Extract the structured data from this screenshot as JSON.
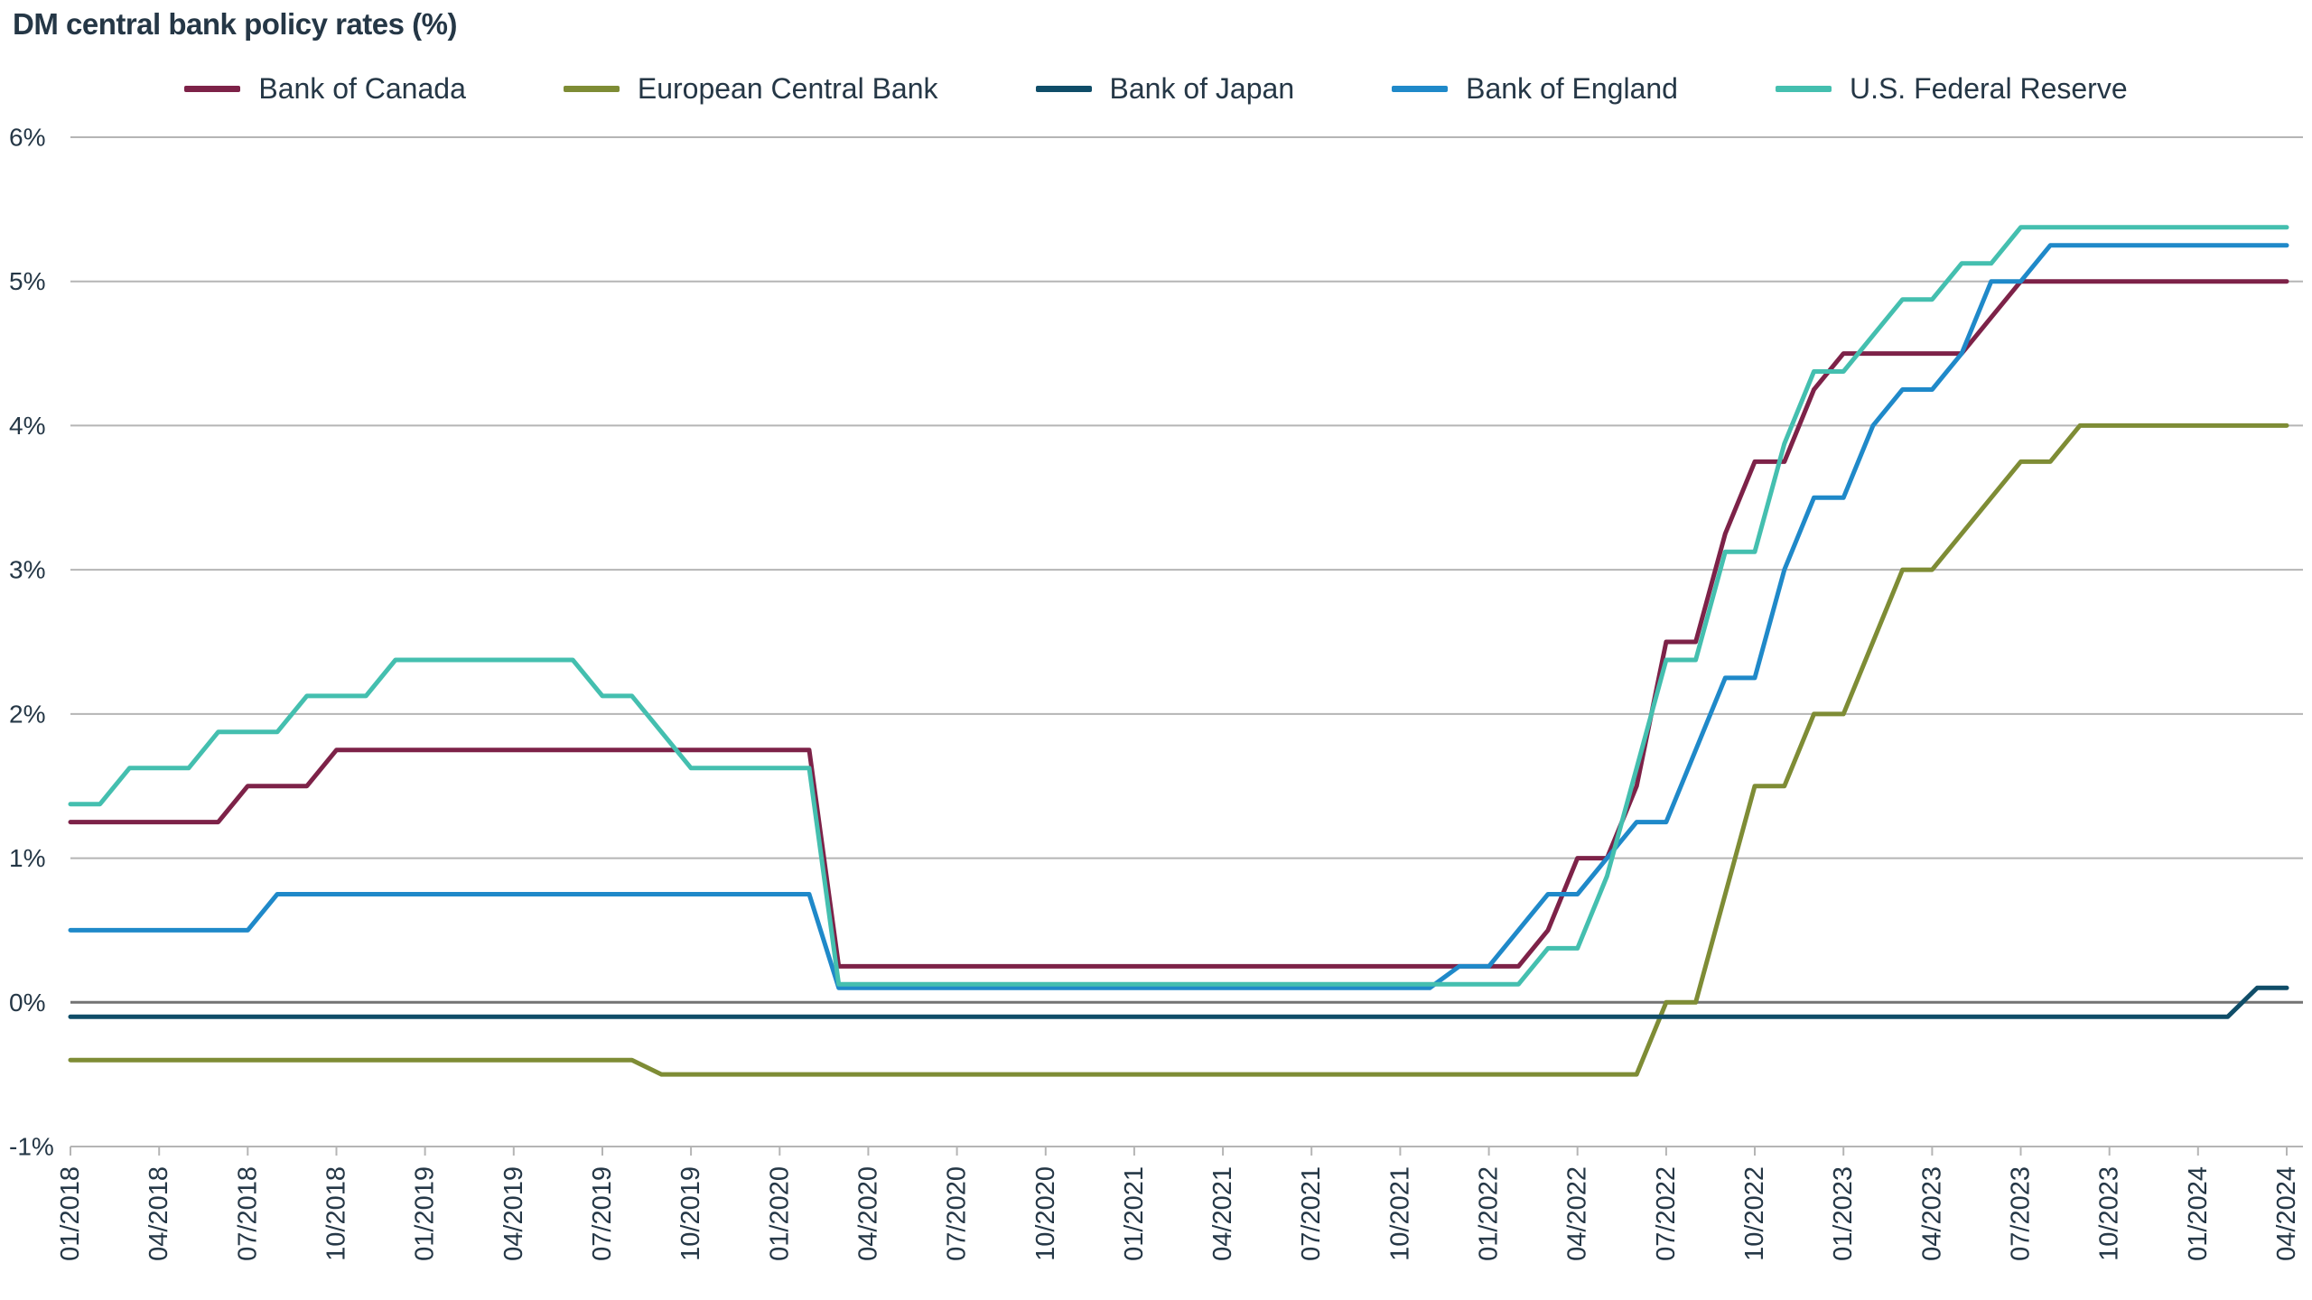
{
  "title": "DM central bank policy rates (%)",
  "colors": {
    "text": "#253746",
    "gridline": "#b5b5b5",
    "zero_line": "#737373",
    "background": "#ffffff"
  },
  "chart_data": {
    "type": "line",
    "title": "DM central bank policy rates (%)",
    "xlabel": "",
    "ylabel": "",
    "frequency": "monthly",
    "x_start_label": "01/2018",
    "x_end_label": "04/2024",
    "ylim": [
      -1,
      6
    ],
    "grid": "horizontal",
    "legend_position": "top",
    "y_tick_labels": [
      "6%",
      "5%",
      "4%",
      "3%",
      "2%",
      "1%",
      "0%",
      "-1%"
    ],
    "y_ticks": [
      6,
      5,
      4,
      3,
      2,
      1,
      0,
      -1
    ],
    "x_tick_labels": [
      "01/2018",
      "04/2018",
      "07/2018",
      "10/2018",
      "01/2019",
      "04/2019",
      "07/2019",
      "10/2019",
      "01/2020",
      "04/2020",
      "07/2020",
      "10/2020",
      "01/2021",
      "04/2021",
      "07/2021",
      "10/2021",
      "01/2022",
      "04/2022",
      "07/2022",
      "10/2022",
      "01/2023",
      "04/2023",
      "07/2023",
      "10/2023",
      "01/2024",
      "04/2024"
    ],
    "x_tick_every_n_points": 3,
    "series": [
      {
        "name": "Bank of Canada",
        "color": "#7d2248",
        "values": [
          1.25,
          1.25,
          1.25,
          1.25,
          1.25,
          1.25,
          1.5,
          1.5,
          1.5,
          1.75,
          1.75,
          1.75,
          1.75,
          1.75,
          1.75,
          1.75,
          1.75,
          1.75,
          1.75,
          1.75,
          1.75,
          1.75,
          1.75,
          1.75,
          1.75,
          1.75,
          0.25,
          0.25,
          0.25,
          0.25,
          0.25,
          0.25,
          0.25,
          0.25,
          0.25,
          0.25,
          0.25,
          0.25,
          0.25,
          0.25,
          0.25,
          0.25,
          0.25,
          0.25,
          0.25,
          0.25,
          0.25,
          0.25,
          0.25,
          0.25,
          0.5,
          1.0,
          1.0,
          1.5,
          2.5,
          2.5,
          3.25,
          3.75,
          3.75,
          4.25,
          4.5,
          4.5,
          4.5,
          4.5,
          4.5,
          4.75,
          5.0,
          5.0,
          5.0,
          5.0,
          5.0,
          5.0,
          5.0,
          5.0,
          5.0,
          5.0
        ]
      },
      {
        "name": "European Central Bank",
        "color": "#7e8c35",
        "values": [
          -0.4,
          -0.4,
          -0.4,
          -0.4,
          -0.4,
          -0.4,
          -0.4,
          -0.4,
          -0.4,
          -0.4,
          -0.4,
          -0.4,
          -0.4,
          -0.4,
          -0.4,
          -0.4,
          -0.4,
          -0.4,
          -0.4,
          -0.4,
          -0.5,
          -0.5,
          -0.5,
          -0.5,
          -0.5,
          -0.5,
          -0.5,
          -0.5,
          -0.5,
          -0.5,
          -0.5,
          -0.5,
          -0.5,
          -0.5,
          -0.5,
          -0.5,
          -0.5,
          -0.5,
          -0.5,
          -0.5,
          -0.5,
          -0.5,
          -0.5,
          -0.5,
          -0.5,
          -0.5,
          -0.5,
          -0.5,
          -0.5,
          -0.5,
          -0.5,
          -0.5,
          -0.5,
          -0.5,
          0.0,
          0.0,
          0.75,
          1.5,
          1.5,
          2.0,
          2.0,
          2.5,
          3.0,
          3.0,
          3.25,
          3.5,
          3.75,
          3.75,
          4.0,
          4.0,
          4.0,
          4.0,
          4.0,
          4.0,
          4.0,
          4.0
        ]
      },
      {
        "name": "Bank of Japan",
        "color": "#0f4d68",
        "values": [
          -0.1,
          -0.1,
          -0.1,
          -0.1,
          -0.1,
          -0.1,
          -0.1,
          -0.1,
          -0.1,
          -0.1,
          -0.1,
          -0.1,
          -0.1,
          -0.1,
          -0.1,
          -0.1,
          -0.1,
          -0.1,
          -0.1,
          -0.1,
          -0.1,
          -0.1,
          -0.1,
          -0.1,
          -0.1,
          -0.1,
          -0.1,
          -0.1,
          -0.1,
          -0.1,
          -0.1,
          -0.1,
          -0.1,
          -0.1,
          -0.1,
          -0.1,
          -0.1,
          -0.1,
          -0.1,
          -0.1,
          -0.1,
          -0.1,
          -0.1,
          -0.1,
          -0.1,
          -0.1,
          -0.1,
          -0.1,
          -0.1,
          -0.1,
          -0.1,
          -0.1,
          -0.1,
          -0.1,
          -0.1,
          -0.1,
          -0.1,
          -0.1,
          -0.1,
          -0.1,
          -0.1,
          -0.1,
          -0.1,
          -0.1,
          -0.1,
          -0.1,
          -0.1,
          -0.1,
          -0.1,
          -0.1,
          -0.1,
          -0.1,
          -0.1,
          -0.1,
          0.1,
          0.1
        ]
      },
      {
        "name": "Bank of England",
        "color": "#1f89c9",
        "values": [
          0.5,
          0.5,
          0.5,
          0.5,
          0.5,
          0.5,
          0.5,
          0.75,
          0.75,
          0.75,
          0.75,
          0.75,
          0.75,
          0.75,
          0.75,
          0.75,
          0.75,
          0.75,
          0.75,
          0.75,
          0.75,
          0.75,
          0.75,
          0.75,
          0.75,
          0.75,
          0.1,
          0.1,
          0.1,
          0.1,
          0.1,
          0.1,
          0.1,
          0.1,
          0.1,
          0.1,
          0.1,
          0.1,
          0.1,
          0.1,
          0.1,
          0.1,
          0.1,
          0.1,
          0.1,
          0.1,
          0.1,
          0.25,
          0.25,
          0.5,
          0.75,
          0.75,
          1.0,
          1.25,
          1.25,
          1.75,
          2.25,
          2.25,
          3.0,
          3.5,
          3.5,
          4.0,
          4.25,
          4.25,
          4.5,
          5.0,
          5.0,
          5.25,
          5.25,
          5.25,
          5.25,
          5.25,
          5.25,
          5.25,
          5.25,
          5.25
        ]
      },
      {
        "name": "U.S. Federal Reserve",
        "color": "#44bfaf",
        "values": [
          1.375,
          1.375,
          1.625,
          1.625,
          1.625,
          1.875,
          1.875,
          1.875,
          2.125,
          2.125,
          2.125,
          2.375,
          2.375,
          2.375,
          2.375,
          2.375,
          2.375,
          2.375,
          2.125,
          2.125,
          1.875,
          1.625,
          1.625,
          1.625,
          1.625,
          1.625,
          0.125,
          0.125,
          0.125,
          0.125,
          0.125,
          0.125,
          0.125,
          0.125,
          0.125,
          0.125,
          0.125,
          0.125,
          0.125,
          0.125,
          0.125,
          0.125,
          0.125,
          0.125,
          0.125,
          0.125,
          0.125,
          0.125,
          0.125,
          0.125,
          0.375,
          0.375,
          0.875,
          1.625,
          2.375,
          2.375,
          3.125,
          3.125,
          3.875,
          4.375,
          4.375,
          4.625,
          4.875,
          4.875,
          5.125,
          5.125,
          5.375,
          5.375,
          5.375,
          5.375,
          5.375,
          5.375,
          5.375,
          5.375,
          5.375,
          5.375
        ]
      }
    ]
  }
}
